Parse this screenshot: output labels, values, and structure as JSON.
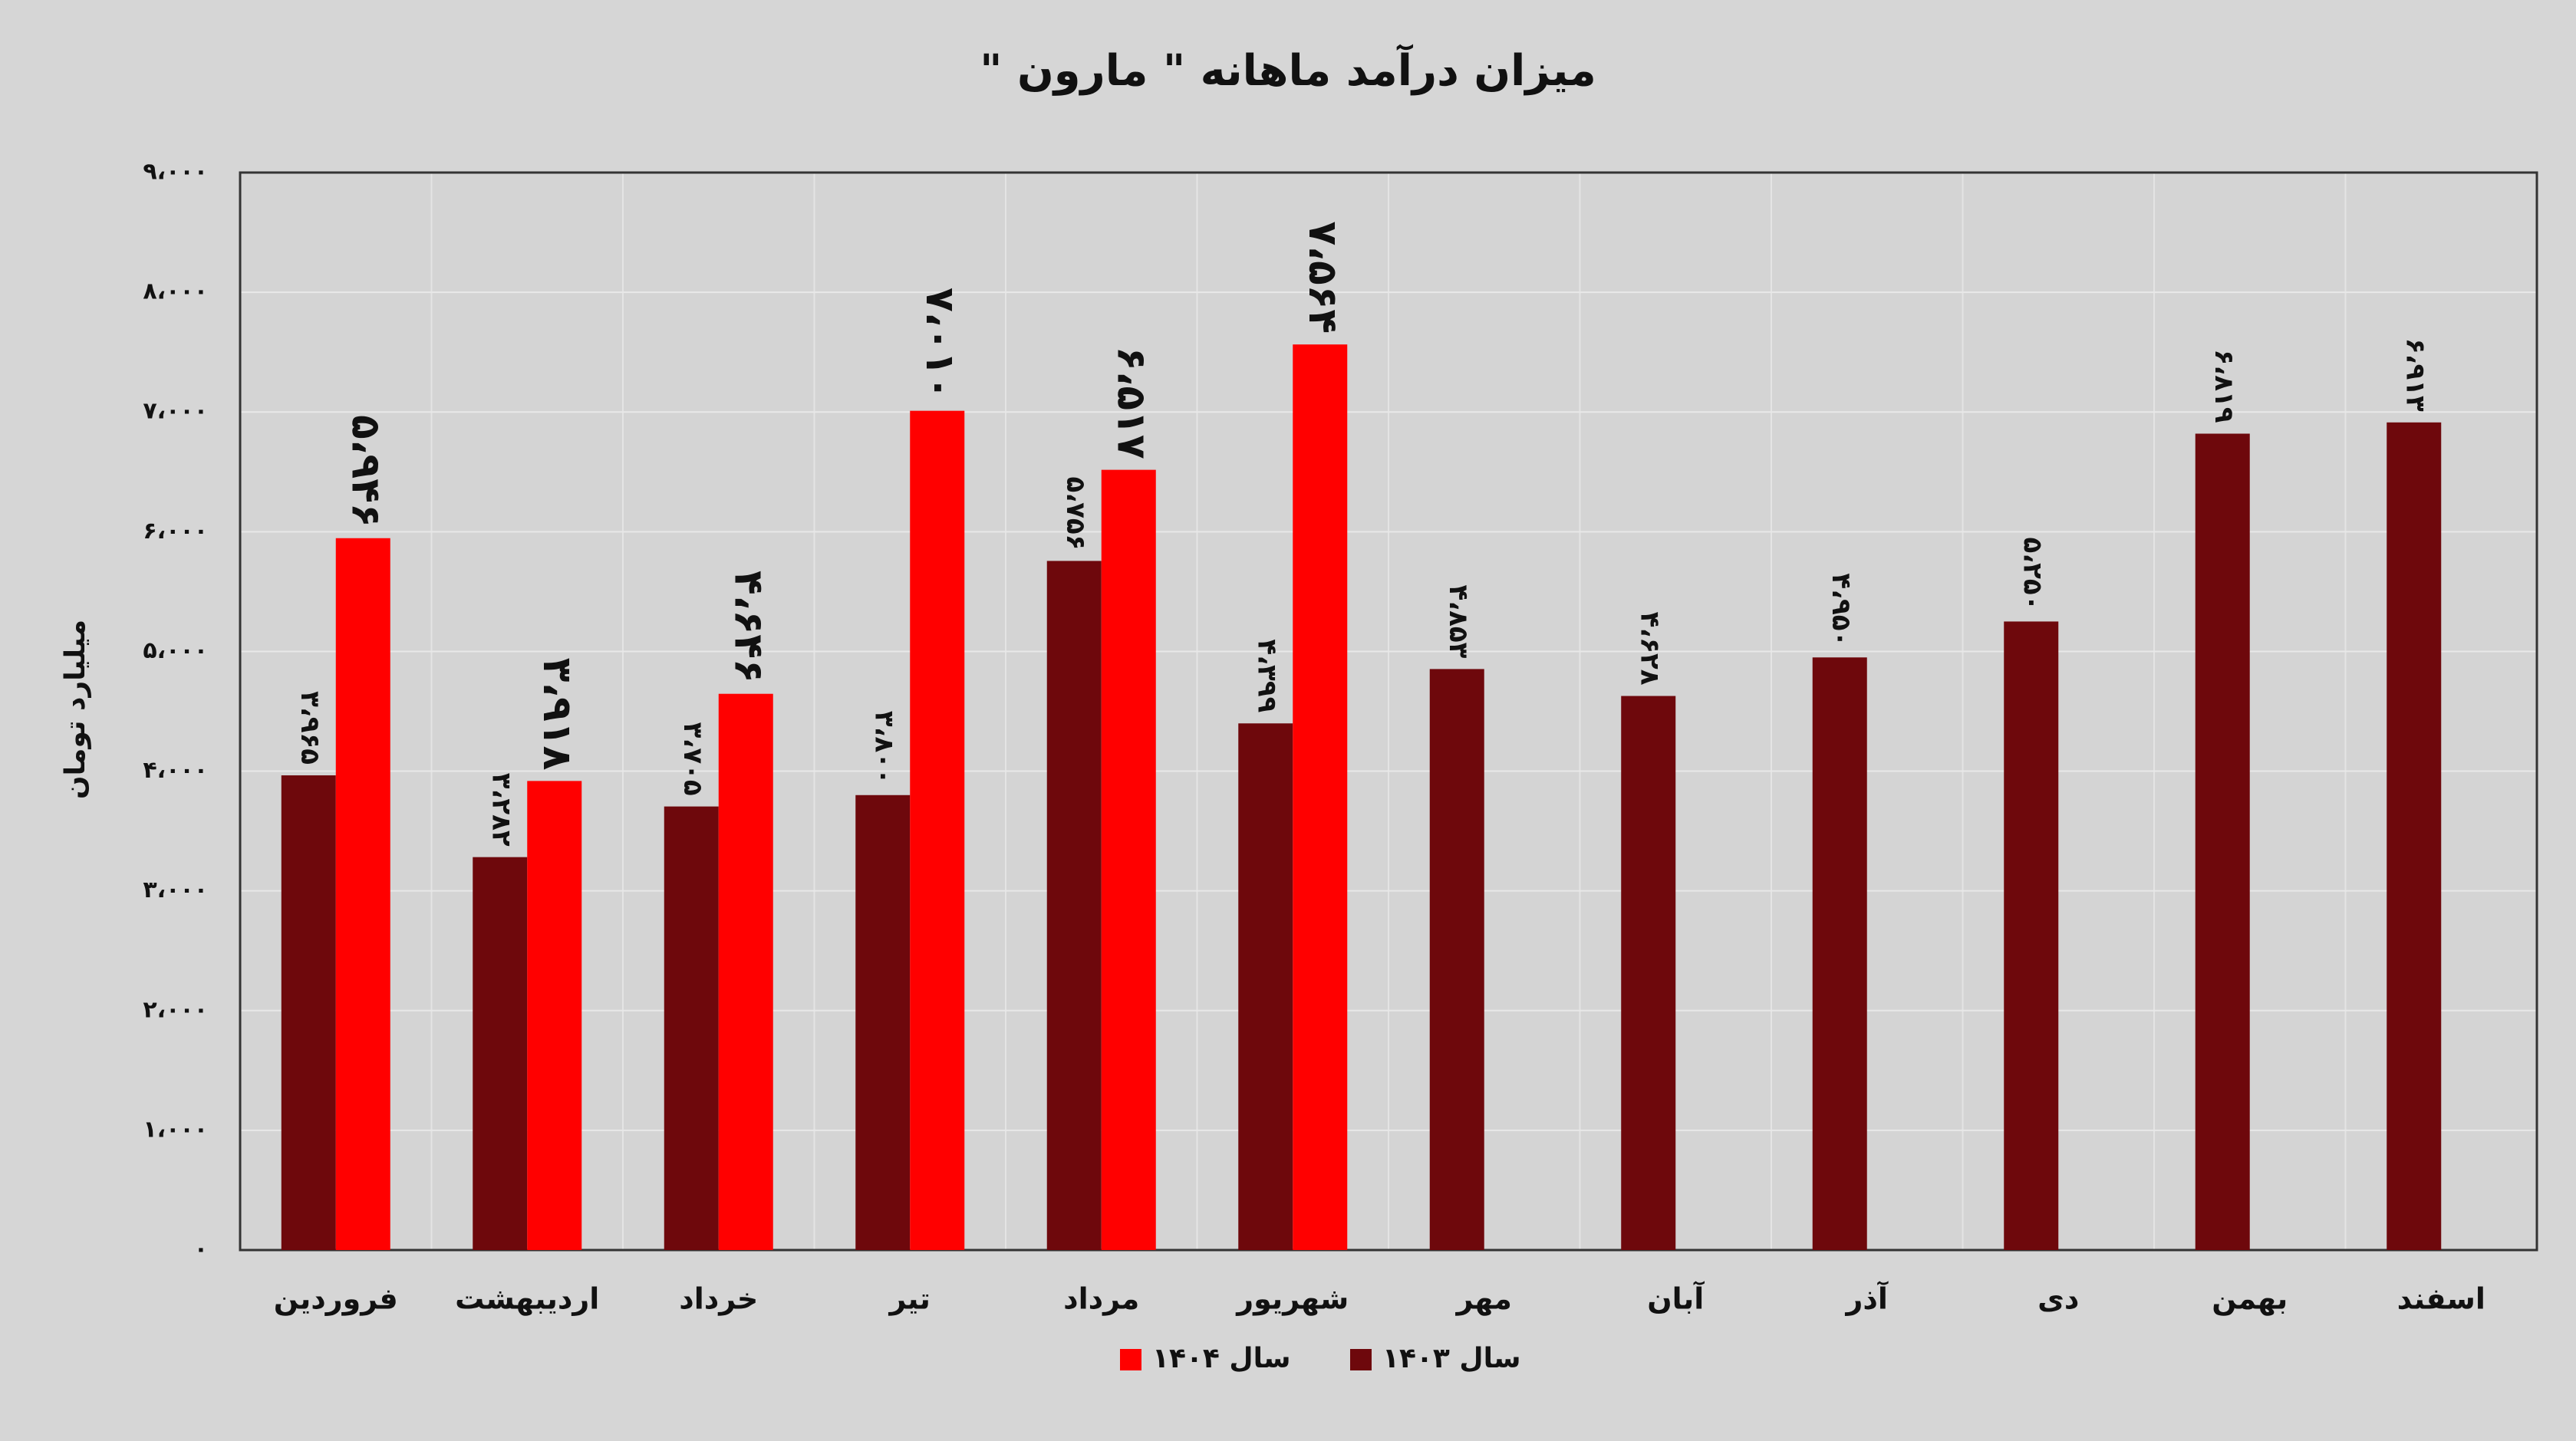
{
  "chart_data": {
    "type": "bar",
    "title": "میزان درآمد ماهانه \" مارون \"",
    "y_label": "میلیارد تومان",
    "categories": [
      "فروردین",
      "اردیبهشت",
      "خرداد",
      "تیر",
      "مرداد",
      "شهریور",
      "مهر",
      "آبان",
      "آذر",
      "دی",
      "بهمن",
      "اسفند"
    ],
    "series": [
      {
        "name": "سال ۱۴۰۳",
        "color": "#6e080c",
        "values": [
          3965,
          3282,
          3705,
          3800,
          5756,
          4399,
          4853,
          4628,
          4950,
          5250,
          6819,
          6913
        ],
        "value_labels": [
          "۳،۹۶۵",
          "۳،۲۸۲",
          "۳،۷۰۵",
          "۳،۸۰۰",
          "۵،۷۵۶",
          "۴،۳۹۹",
          "۴،۸۵۳",
          "۴،۶۲۸",
          "۴،۹۵۰",
          "۵،۲۵۰",
          "۶،۸۱۹",
          "۶،۹۱۳"
        ]
      },
      {
        "name": "سال ۱۴۰۴",
        "color": "#ff0000",
        "values": [
          5946,
          3918,
          4646,
          7010,
          6517,
          7564,
          null,
          null,
          null,
          null,
          null,
          null
        ],
        "value_labels": [
          "۵،۹۴۶",
          "۳،۹۱۸",
          "۴،۶۴۶",
          "۷،۰۱۰",
          "۶،۵۱۷",
          "۷،۵۶۴",
          null,
          null,
          null,
          null,
          null,
          null
        ]
      }
    ],
    "ylim": [
      0,
      9000
    ],
    "yticks": [
      {
        "value": 0,
        "label": "۰"
      },
      {
        "value": 1000,
        "label": "۱،۰۰۰"
      },
      {
        "value": 2000,
        "label": "۲،۰۰۰"
      },
      {
        "value": 3000,
        "label": "۳،۰۰۰"
      },
      {
        "value": 4000,
        "label": "۴،۰۰۰"
      },
      {
        "value": 5000,
        "label": "۵،۰۰۰"
      },
      {
        "value": 6000,
        "label": "۶،۰۰۰"
      },
      {
        "value": 7000,
        "label": "۷،۰۰۰"
      },
      {
        "value": 8000,
        "label": "۸،۰۰۰"
      },
      {
        "value": 9000,
        "label": "۹،۰۰۰"
      }
    ],
    "grid": true,
    "legend": "bottom"
  }
}
